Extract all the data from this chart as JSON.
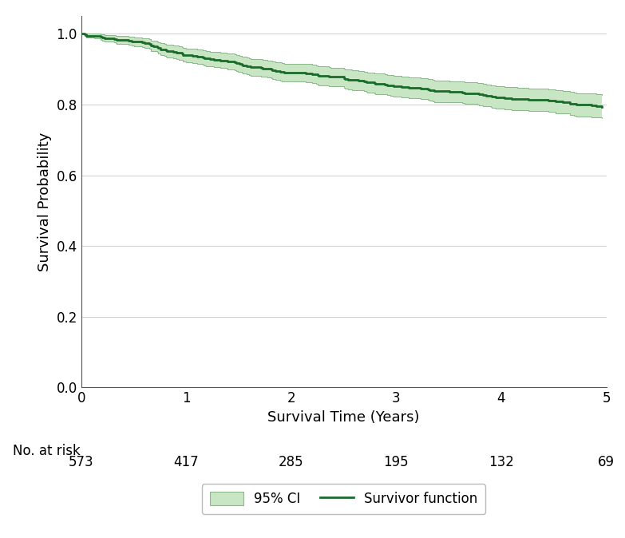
{
  "xlabel": "Survival Time (Years)",
  "ylabel": "Survival Probability",
  "xlim": [
    0,
    5
  ],
  "ylim": [
    0.0,
    1.05
  ],
  "yticks": [
    0.0,
    0.2,
    0.4,
    0.6,
    0.8,
    1.0
  ],
  "xticks": [
    0,
    1,
    2,
    3,
    4,
    5
  ],
  "at_risk_label": "No. at risk",
  "at_risk_times": [
    0,
    1,
    2,
    3,
    4,
    5
  ],
  "at_risk_counts": [
    573,
    417,
    285,
    195,
    132,
    69
  ],
  "line_color": "#1a6b2a",
  "ci_color": "#c8e6c4",
  "ci_edge_color": "#8ab88a",
  "legend_ci_label": "95% CI",
  "legend_line_label": "Survivor function",
  "grid_color": "#d0d0d0",
  "background_color": "#ffffff"
}
